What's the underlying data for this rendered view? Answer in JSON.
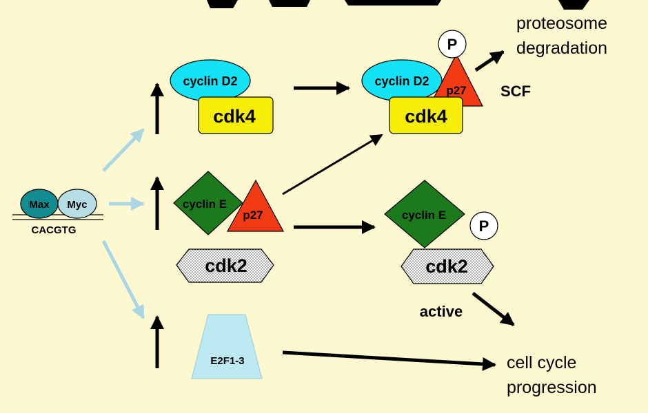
{
  "promoter": {
    "max_label": "Max",
    "myc_label": "Myc",
    "ebox_label": "CACGTG"
  },
  "top_row": {
    "cyclin_label": "cyclin D2",
    "kinase_label": "cdk4"
  },
  "middle_row": {
    "cyclin_label": "cyclin E",
    "inhibitor_label": "p27",
    "kinase_label": "cdk2"
  },
  "bottom_row": {
    "factor_label": "E2F1-3"
  },
  "scf_complex": {
    "cyclin_label": "cyclin D2",
    "inhibitor_label": "p27",
    "kinase_label": "cdk4",
    "phospho_label": "P",
    "ligase_label": "SCF"
  },
  "active_complex": {
    "cyclin_label": "cyclin E",
    "kinase_label": "cdk2",
    "phospho_label": "P",
    "state_label": "active"
  },
  "outcomes": {
    "degradation_line1": "proteosome",
    "degradation_line2": "degradation",
    "progression_line1": "cell cycle",
    "progression_line2": "progression"
  },
  "colors": {
    "background": "#fdf8cf",
    "max": "#138c91",
    "myc": "#b8dde6",
    "cyclin_d2": "#12e4f6",
    "cdk4": "#f6ee07",
    "cyclin_e": "#1c7a1c",
    "p27": "#f23a14",
    "e2f": "#bde9f2",
    "myc_arrow": "#a9d6e3"
  }
}
